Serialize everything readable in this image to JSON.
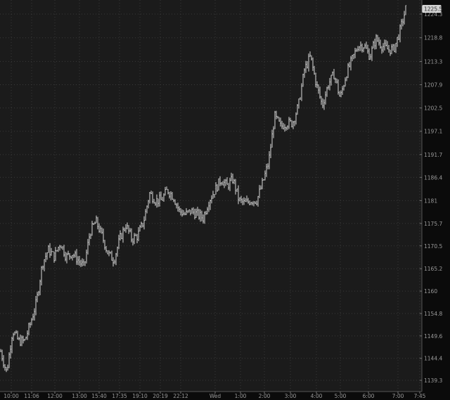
{
  "chart_data": {
    "type": "line",
    "title": "",
    "xlabel": "",
    "ylabel": "",
    "ylim": [
      1137.5,
      1227.5
    ],
    "grid": true,
    "y_ticks": [
      "1224.3",
      "1218.8",
      "1213.3",
      "1207.9",
      "1202.5",
      "1197.1",
      "1191.7",
      "1186.4",
      "1181",
      "1175.7",
      "1170.5",
      "1165.2",
      "1160",
      "1154.8",
      "1149.6",
      "1144.4",
      "1139.3"
    ],
    "x_ticks": [
      "10:00",
      "11:06",
      "12:00",
      "13:00",
      "15:40",
      "17:35",
      "19:10",
      "20:19",
      "22:12",
      "Wed",
      "1:00",
      "2:00",
      "3:00",
      "4:00",
      "5:00",
      "6:00",
      "7:00",
      "7:45"
    ],
    "last_price": "1225.5",
    "colors": {
      "background": "#1b1b1b",
      "axis_background": "#0b0b0b",
      "price_line": "#d8d8d8",
      "grid": "#3a3a3a"
    },
    "series": [
      {
        "values": [
          1146,
          1141.1,
          1150.9,
          1148.4,
          1148.4,
          1152.5,
          1157.4,
          1166.4,
          1169.6,
          1168,
          1171.3,
          1168,
          1168.8,
          1167.2,
          1165.6,
          1173.7,
          1176.2,
          1172.9,
          1168.8,
          1167.2,
          1172.1,
          1175.4,
          1172.1,
          1172.9,
          1176.2,
          1182.7,
          1181.1,
          1181.1,
          1183.5,
          1181.9,
          1178.6,
          1177.8,
          1178.6,
          1177.8,
          1177.0,
          1181.1,
          1183.5,
          1186,
          1184.4,
          1186,
          1181.1,
          1180.3,
          1181.1,
          1181.1,
          1185.2,
          1190,
          1200.6,
          1198.2,
          1199,
          1199,
          1203.1,
          1211.3,
          1214.5,
          1208,
          1203.1,
          1208,
          1210.4,
          1204.7,
          1210.4,
          1213.7,
          1217,
          1217,
          1214.5,
          1218.6,
          1217,
          1216.1,
          1216.1,
          1220.2,
          1225.5
        ]
      }
    ]
  }
}
